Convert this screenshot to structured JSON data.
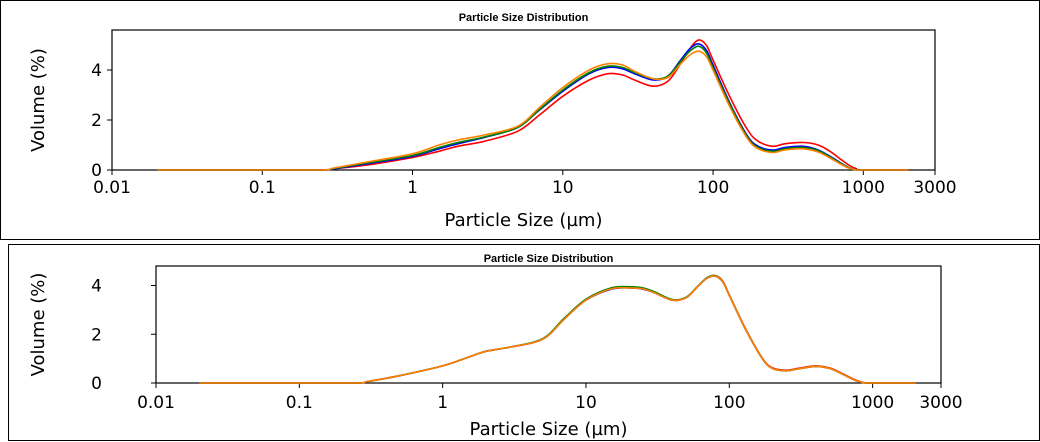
{
  "chart_data": [
    {
      "type": "line",
      "title": "Particle Size Distribution",
      "xlabel": "Particle Size (µm)",
      "ylabel": "Volume (%)",
      "x_scale": "log",
      "xlim": [
        0.01,
        3000
      ],
      "ylim": [
        0,
        5.6
      ],
      "x_ticks": [
        "0.01",
        "0.1",
        "1",
        "10",
        "100",
        "1000",
        "3000"
      ],
      "y_ticks": [
        "0",
        "2",
        "4"
      ],
      "x": [
        0.02,
        0.1,
        0.25,
        0.3,
        0.5,
        1,
        1.5,
        2,
        3,
        5,
        7,
        10,
        15,
        20,
        25,
        30,
        40,
        50,
        60,
        70,
        80,
        90,
        100,
        130,
        170,
        200,
        250,
        300,
        400,
        500,
        600,
        700,
        800,
        900,
        1000,
        2000
      ],
      "series": [
        {
          "color": "#ff0000",
          "values": [
            0,
            0,
            0,
            0.05,
            0.2,
            0.5,
            0.75,
            0.95,
            1.15,
            1.55,
            2.2,
            2.95,
            3.6,
            3.85,
            3.8,
            3.6,
            3.35,
            3.55,
            4.2,
            4.85,
            5.2,
            5.0,
            4.4,
            2.9,
            1.6,
            1.15,
            0.95,
            1.05,
            1.1,
            1.0,
            0.75,
            0.45,
            0.2,
            0.05,
            0,
            0
          ]
        },
        {
          "color": "#0000ff",
          "values": [
            0,
            0,
            0,
            0.05,
            0.25,
            0.55,
            0.85,
            1.05,
            1.3,
            1.7,
            2.4,
            3.15,
            3.85,
            4.1,
            4.05,
            3.85,
            3.6,
            3.75,
            4.35,
            4.85,
            5.05,
            4.8,
            4.2,
            2.65,
            1.35,
            0.95,
            0.8,
            0.9,
            0.95,
            0.8,
            0.55,
            0.3,
            0.1,
            0,
            0,
            0
          ]
        },
        {
          "color": "#008000",
          "values": [
            0,
            0,
            0,
            0.06,
            0.28,
            0.58,
            0.9,
            1.1,
            1.32,
            1.7,
            2.42,
            3.2,
            3.9,
            4.15,
            4.1,
            3.9,
            3.65,
            3.75,
            4.3,
            4.75,
            4.95,
            4.7,
            4.1,
            2.6,
            1.3,
            0.9,
            0.75,
            0.85,
            0.9,
            0.78,
            0.52,
            0.28,
            0.1,
            0,
            0,
            0
          ]
        },
        {
          "color": "#ff8000",
          "values": [
            0,
            0,
            0,
            0.08,
            0.32,
            0.65,
            1.0,
            1.2,
            1.4,
            1.75,
            2.5,
            3.3,
            4.0,
            4.25,
            4.2,
            3.95,
            3.65,
            3.7,
            4.2,
            4.6,
            4.75,
            4.55,
            4.0,
            2.5,
            1.25,
            0.85,
            0.7,
            0.8,
            0.85,
            0.72,
            0.48,
            0.25,
            0.08,
            0,
            0,
            0
          ]
        }
      ]
    },
    {
      "type": "line",
      "title": "Particle Size Distribution",
      "xlabel": "Particle Size (µm)",
      "ylabel": "Volume (%)",
      "x_scale": "log",
      "xlim": [
        0.01,
        3000
      ],
      "ylim": [
        0,
        4.8
      ],
      "x_ticks": [
        "0.01",
        "0.1",
        "1",
        "10",
        "100",
        "1000",
        "3000"
      ],
      "y_ticks": [
        "0",
        "2",
        "4"
      ],
      "x": [
        0.02,
        0.1,
        0.25,
        0.3,
        0.5,
        1,
        1.5,
        2,
        3,
        5,
        7,
        10,
        15,
        20,
        25,
        30,
        40,
        50,
        60,
        70,
        80,
        90,
        100,
        130,
        170,
        200,
        250,
        300,
        400,
        500,
        600,
        700,
        800,
        900,
        1000,
        2000
      ],
      "series": [
        {
          "color": "#0000ff",
          "values": [
            0,
            0,
            0,
            0.06,
            0.3,
            0.7,
            1.05,
            1.3,
            1.48,
            1.8,
            2.6,
            3.4,
            3.85,
            3.9,
            3.85,
            3.7,
            3.4,
            3.5,
            3.95,
            4.3,
            4.38,
            4.15,
            3.6,
            2.2,
            1.0,
            0.6,
            0.5,
            0.58,
            0.68,
            0.6,
            0.4,
            0.2,
            0.06,
            0,
            0,
            0
          ]
        },
        {
          "color": "#ff0000",
          "values": [
            0,
            0,
            0,
            0.06,
            0.3,
            0.7,
            1.05,
            1.3,
            1.48,
            1.8,
            2.62,
            3.42,
            3.88,
            3.92,
            3.88,
            3.72,
            3.4,
            3.5,
            3.95,
            4.32,
            4.4,
            4.18,
            3.62,
            2.22,
            1.02,
            0.62,
            0.52,
            0.6,
            0.7,
            0.62,
            0.42,
            0.22,
            0.08,
            0,
            0,
            0
          ]
        },
        {
          "color": "#008000",
          "values": [
            0,
            0,
            0,
            0.06,
            0.3,
            0.7,
            1.05,
            1.3,
            1.48,
            1.82,
            2.64,
            3.44,
            3.9,
            3.95,
            3.9,
            3.74,
            3.42,
            3.52,
            3.96,
            4.32,
            4.4,
            4.16,
            3.6,
            2.2,
            1.0,
            0.6,
            0.5,
            0.58,
            0.68,
            0.6,
            0.4,
            0.2,
            0.06,
            0,
            0,
            0
          ]
        },
        {
          "color": "#ff8000",
          "values": [
            0,
            0,
            0,
            0.06,
            0.3,
            0.7,
            1.05,
            1.3,
            1.48,
            1.8,
            2.6,
            3.4,
            3.86,
            3.9,
            3.86,
            3.7,
            3.4,
            3.5,
            3.95,
            4.3,
            4.38,
            4.15,
            3.6,
            2.2,
            1.0,
            0.6,
            0.5,
            0.58,
            0.68,
            0.6,
            0.4,
            0.2,
            0.06,
            0,
            0,
            0
          ]
        }
      ]
    }
  ]
}
